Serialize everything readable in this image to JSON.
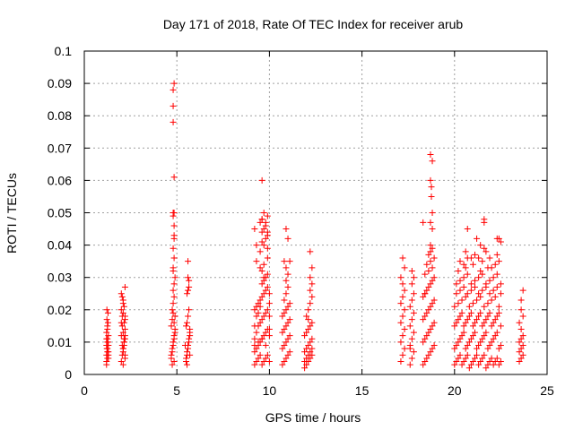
{
  "chart_data": {
    "type": "scatter",
    "title": "Day 171 of 2018, Rate Of TEC Index for receiver arub",
    "xlabel": "GPS time / hours",
    "ylabel": "ROTI / TECUs",
    "xlim": [
      0,
      25
    ],
    "ylim": [
      0,
      0.1
    ],
    "xticks": [
      0,
      5,
      10,
      15,
      20,
      25
    ],
    "yticks": [
      0,
      0.01,
      0.02,
      0.03,
      0.04,
      0.05,
      0.06,
      0.07,
      0.08,
      0.09,
      0.1
    ],
    "xtick_labels": [
      "0",
      "5",
      "10",
      "15",
      "20",
      "25"
    ],
    "ytick_labels": [
      "0",
      "0.01",
      "0.02",
      "0.03",
      "0.04",
      "0.05",
      "0.06",
      "0.07",
      "0.08",
      "0.09",
      "0.1"
    ],
    "grid": true,
    "marker": "+",
    "color": "#ff0000",
    "series": [
      {
        "x": [
          1.2,
          1.2,
          1.25,
          1.25,
          1.3,
          1.3,
          1.2,
          1.25,
          1.3,
          1.2,
          1.25,
          1.3,
          1.2,
          1.25,
          1.3,
          1.2,
          1.25,
          1.22,
          1.28,
          1.22,
          1.28,
          1.25,
          1.22,
          1.28,
          2.0,
          2.05,
          2.1,
          2.15,
          2.2,
          2.0,
          2.05,
          2.1,
          2.15,
          2.2,
          2.0,
          2.05,
          2.1,
          2.15,
          2.2,
          2.0,
          2.1,
          2.2,
          2.05,
          2.15,
          2.1,
          2.2,
          2.15,
          2.05,
          2.1,
          2.2,
          2.0,
          2.1,
          2.2,
          2.15,
          2.1,
          2.2,
          4.7,
          4.75,
          4.8,
          4.85,
          4.9,
          4.7,
          4.75,
          4.8,
          4.85,
          4.9,
          4.7,
          4.75,
          4.8,
          4.85,
          4.9,
          4.75,
          4.8,
          4.85,
          4.8,
          4.85,
          4.9,
          4.8,
          4.85,
          4.8,
          4.85,
          4.85,
          4.85,
          4.8,
          4.8,
          4.85,
          4.85,
          4.8,
          4.8,
          4.8,
          4.85,
          4.85,
          4.75,
          4.8,
          4.8,
          5.5,
          5.55,
          5.6,
          5.65,
          5.7,
          5.5,
          5.55,
          5.6,
          5.65,
          5.7,
          5.5,
          5.55,
          5.6,
          5.65,
          5.7,
          5.55,
          5.6,
          5.65,
          5.6,
          5.65,
          5.6,
          5.55,
          5.7,
          5.45,
          9.2,
          9.3,
          9.4,
          9.5,
          9.6,
          9.7,
          9.8,
          9.9,
          10.0,
          9.2,
          9.3,
          9.4,
          9.5,
          9.6,
          9.7,
          9.8,
          9.9,
          10.0,
          9.2,
          9.3,
          9.4,
          9.5,
          9.6,
          9.7,
          9.8,
          9.9,
          10.0,
          9.2,
          9.3,
          9.4,
          9.5,
          9.6,
          9.7,
          9.8,
          9.9,
          10.0,
          9.2,
          9.3,
          9.4,
          9.5,
          9.6,
          9.7,
          9.8,
          9.9,
          10.0,
          9.3,
          9.5,
          9.7,
          9.9,
          9.2,
          9.4,
          9.6,
          9.8,
          10.0,
          9.5,
          9.7,
          9.9,
          9.6,
          9.8,
          9.9,
          9.6,
          9.7,
          9.8,
          9.5,
          9.6,
          9.7,
          9.9,
          9.6,
          9.8,
          9.7,
          9.2,
          9.3,
          9.6,
          9.9,
          9.6,
          10.7,
          10.8,
          10.9,
          11.0,
          11.1,
          10.7,
          10.8,
          10.9,
          11.0,
          11.1,
          10.7,
          10.8,
          10.9,
          11.0,
          11.1,
          10.7,
          10.8,
          10.9,
          11.0,
          11.1,
          10.8,
          10.9,
          11.0,
          10.9,
          11.0,
          10.9,
          11.1,
          10.8,
          11.0,
          10.9,
          11.9,
          12.0,
          12.1,
          12.2,
          12.3,
          11.9,
          12.0,
          12.1,
          12.2,
          12.3,
          11.9,
          12.0,
          12.1,
          12.2,
          12.3,
          11.9,
          12.0,
          12.1,
          12.2,
          12.3,
          12.0,
          12.1,
          12.2,
          12.3,
          12.2,
          12.3,
          12.1,
          12.2,
          12.3,
          12.2,
          17.1,
          17.2,
          17.3,
          17.1,
          17.2,
          17.3,
          17.1,
          17.2,
          17.3,
          17.1,
          17.2,
          17.3,
          17.2,
          17.1,
          17.3,
          17.2,
          17.6,
          17.7,
          17.8,
          17.6,
          17.7,
          17.8,
          17.6,
          17.7,
          17.8,
          17.6,
          17.7,
          17.8,
          17.7,
          17.8,
          17.6,
          17.7,
          18.3,
          18.4,
          18.5,
          18.6,
          18.7,
          18.8,
          18.9,
          18.3,
          18.4,
          18.5,
          18.6,
          18.7,
          18.8,
          18.9,
          18.3,
          18.4,
          18.5,
          18.6,
          18.7,
          18.8,
          18.9,
          18.3,
          18.4,
          18.5,
          18.6,
          18.7,
          18.8,
          18.9,
          18.4,
          18.6,
          18.8,
          18.5,
          18.7,
          18.9,
          18.6,
          18.7,
          18.8,
          18.7,
          18.8,
          18.7,
          18.8,
          18.75,
          18.75,
          18.7,
          18.8,
          18.7,
          18.3,
          18.4,
          20.0,
          20.1,
          20.2,
          20.3,
          20.4,
          20.5,
          20.6,
          20.7,
          20.8,
          20.9,
          21.0,
          21.1,
          21.2,
          21.3,
          21.4,
          21.5,
          21.6,
          21.7,
          21.8,
          21.9,
          22.0,
          22.1,
          22.2,
          22.3,
          22.4,
          22.5,
          20.0,
          20.1,
          20.2,
          20.3,
          20.4,
          20.5,
          20.6,
          20.7,
          20.8,
          20.9,
          21.0,
          21.1,
          21.2,
          21.3,
          21.4,
          21.5,
          21.6,
          21.7,
          21.8,
          21.9,
          22.0,
          22.1,
          22.2,
          22.3,
          22.4,
          22.5,
          20.0,
          20.1,
          20.2,
          20.3,
          20.4,
          20.5,
          20.6,
          20.7,
          20.8,
          20.9,
          21.0,
          21.1,
          21.2,
          21.3,
          21.4,
          21.5,
          21.6,
          21.7,
          21.8,
          21.9,
          22.0,
          22.1,
          22.2,
          22.3,
          22.4,
          22.5,
          20.0,
          20.2,
          20.4,
          20.6,
          20.8,
          21.0,
          21.2,
          21.4,
          21.6,
          21.8,
          22.0,
          22.2,
          22.4,
          20.1,
          20.3,
          20.5,
          20.7,
          20.9,
          21.1,
          21.3,
          21.5,
          21.7,
          21.9,
          22.1,
          22.3,
          22.5,
          20.1,
          20.3,
          20.5,
          20.7,
          20.9,
          21.1,
          21.3,
          21.5,
          21.7,
          21.9,
          22.1,
          22.3,
          22.5,
          20.2,
          20.6,
          21.0,
          21.4,
          21.8,
          22.2,
          20.3,
          20.7,
          21.1,
          21.5,
          21.9,
          22.3,
          20.6,
          20.7,
          21.2,
          21.4,
          21.6,
          21.6,
          21.7,
          22.3,
          22.4,
          22.5,
          20.5,
          20.9,
          21.3,
          21.6,
          22.0,
          22.4,
          23.5,
          23.6,
          23.7,
          23.5,
          23.6,
          23.7,
          23.5,
          23.6,
          23.7,
          23.6,
          23.5,
          23.7,
          23.6,
          23.6,
          23.7
        ],
        "y": [
          0.004,
          0.006,
          0.008,
          0.01,
          0.012,
          0.005,
          0.009,
          0.011,
          0.007,
          0.013,
          0.015,
          0.009,
          0.003,
          0.005,
          0.006,
          0.011,
          0.014,
          0.017,
          0.016,
          0.02,
          0.019,
          0.007,
          0.008,
          0.01,
          0.004,
          0.006,
          0.008,
          0.01,
          0.005,
          0.012,
          0.009,
          0.007,
          0.011,
          0.014,
          0.016,
          0.018,
          0.013,
          0.009,
          0.006,
          0.02,
          0.022,
          0.017,
          0.015,
          0.01,
          0.008,
          0.012,
          0.021,
          0.024,
          0.019,
          0.027,
          0.025,
          0.023,
          0.018,
          0.016,
          0.003,
          0.011,
          0.005,
          0.007,
          0.009,
          0.011,
          0.013,
          0.006,
          0.008,
          0.01,
          0.012,
          0.014,
          0.015,
          0.017,
          0.019,
          0.016,
          0.018,
          0.02,
          0.022,
          0.024,
          0.026,
          0.028,
          0.03,
          0.033,
          0.036,
          0.039,
          0.042,
          0.043,
          0.046,
          0.049,
          0.05,
          0.05,
          0.061,
          0.078,
          0.083,
          0.088,
          0.09,
          0.004,
          0.003,
          0.009,
          0.032,
          0.004,
          0.006,
          0.008,
          0.01,
          0.012,
          0.005,
          0.007,
          0.009,
          0.011,
          0.013,
          0.015,
          0.016,
          0.018,
          0.02,
          0.014,
          0.025,
          0.026,
          0.027,
          0.03,
          0.029,
          0.035,
          0.003,
          0.006,
          0.009,
          0.003,
          0.004,
          0.005,
          0.006,
          0.003,
          0.004,
          0.005,
          0.006,
          0.004,
          0.007,
          0.008,
          0.009,
          0.01,
          0.011,
          0.012,
          0.013,
          0.014,
          0.012,
          0.011,
          0.013,
          0.015,
          0.016,
          0.017,
          0.018,
          0.019,
          0.02,
          0.018,
          0.02,
          0.021,
          0.022,
          0.023,
          0.024,
          0.025,
          0.026,
          0.027,
          0.025,
          0.015,
          0.018,
          0.019,
          0.021,
          0.028,
          0.029,
          0.03,
          0.031,
          0.022,
          0.035,
          0.033,
          0.034,
          0.036,
          0.009,
          0.01,
          0.011,
          0.009,
          0.014,
          0.038,
          0.04,
          0.039,
          0.041,
          0.042,
          0.043,
          0.044,
          0.045,
          0.046,
          0.047,
          0.048,
          0.05,
          0.049,
          0.048,
          0.047,
          0.03,
          0.045,
          0.04,
          0.06,
          0.044,
          0.032,
          0.003,
          0.004,
          0.005,
          0.006,
          0.007,
          0.008,
          0.009,
          0.01,
          0.011,
          0.012,
          0.013,
          0.014,
          0.015,
          0.016,
          0.017,
          0.018,
          0.019,
          0.02,
          0.021,
          0.022,
          0.023,
          0.025,
          0.027,
          0.029,
          0.031,
          0.033,
          0.035,
          0.035,
          0.042,
          0.045,
          0.002,
          0.003,
          0.004,
          0.005,
          0.006,
          0.004,
          0.005,
          0.006,
          0.007,
          0.008,
          0.007,
          0.008,
          0.009,
          0.01,
          0.011,
          0.012,
          0.013,
          0.014,
          0.015,
          0.016,
          0.018,
          0.02,
          0.022,
          0.024,
          0.026,
          0.028,
          0.017,
          0.03,
          0.033,
          0.038,
          0.004,
          0.006,
          0.008,
          0.01,
          0.012,
          0.014,
          0.016,
          0.018,
          0.02,
          0.022,
          0.024,
          0.026,
          0.028,
          0.03,
          0.033,
          0.036,
          0.003,
          0.005,
          0.007,
          0.009,
          0.011,
          0.013,
          0.015,
          0.017,
          0.019,
          0.021,
          0.023,
          0.025,
          0.028,
          0.03,
          0.008,
          0.032,
          0.003,
          0.004,
          0.005,
          0.006,
          0.007,
          0.008,
          0.009,
          0.01,
          0.011,
          0.012,
          0.013,
          0.014,
          0.015,
          0.016,
          0.017,
          0.018,
          0.019,
          0.02,
          0.021,
          0.022,
          0.023,
          0.024,
          0.025,
          0.026,
          0.027,
          0.028,
          0.029,
          0.03,
          0.031,
          0.032,
          0.033,
          0.034,
          0.035,
          0.036,
          0.037,
          0.038,
          0.039,
          0.04,
          0.045,
          0.047,
          0.05,
          0.055,
          0.058,
          0.06,
          0.066,
          0.068,
          0.047,
          0.025,
          0.003,
          0.004,
          0.005,
          0.006,
          0.003,
          0.004,
          0.005,
          0.006,
          0.002,
          0.003,
          0.004,
          0.005,
          0.006,
          0.003,
          0.004,
          0.005,
          0.006,
          0.002,
          0.003,
          0.004,
          0.005,
          0.003,
          0.004,
          0.005,
          0.003,
          0.004,
          0.008,
          0.009,
          0.01,
          0.011,
          0.012,
          0.013,
          0.008,
          0.009,
          0.01,
          0.011,
          0.012,
          0.013,
          0.008,
          0.009,
          0.01,
          0.011,
          0.012,
          0.013,
          0.008,
          0.009,
          0.01,
          0.011,
          0.012,
          0.013,
          0.008,
          0.009,
          0.015,
          0.016,
          0.017,
          0.018,
          0.019,
          0.015,
          0.016,
          0.017,
          0.018,
          0.019,
          0.015,
          0.016,
          0.017,
          0.018,
          0.019,
          0.015,
          0.016,
          0.017,
          0.018,
          0.019,
          0.015,
          0.016,
          0.017,
          0.018,
          0.019,
          0.015,
          0.021,
          0.022,
          0.023,
          0.024,
          0.021,
          0.022,
          0.023,
          0.024,
          0.021,
          0.022,
          0.023,
          0.024,
          0.021,
          0.025,
          0.026,
          0.027,
          0.025,
          0.026,
          0.027,
          0.025,
          0.026,
          0.027,
          0.025,
          0.026,
          0.027,
          0.025,
          0.028,
          0.029,
          0.03,
          0.031,
          0.028,
          0.029,
          0.03,
          0.031,
          0.028,
          0.029,
          0.03,
          0.031,
          0.028,
          0.032,
          0.033,
          0.034,
          0.032,
          0.033,
          0.034,
          0.035,
          0.036,
          0.037,
          0.035,
          0.036,
          0.037,
          0.038,
          0.045,
          0.042,
          0.04,
          0.047,
          0.048,
          0.038,
          0.042,
          0.042,
          0.041,
          0.034,
          0.036,
          0.036,
          0.039,
          0.033,
          0.035,
          0.004,
          0.005,
          0.006,
          0.007,
          0.008,
          0.009,
          0.01,
          0.011,
          0.012,
          0.014,
          0.016,
          0.018,
          0.02,
          0.023,
          0.026
        ],
        "note_free": true
      }
    ]
  }
}
